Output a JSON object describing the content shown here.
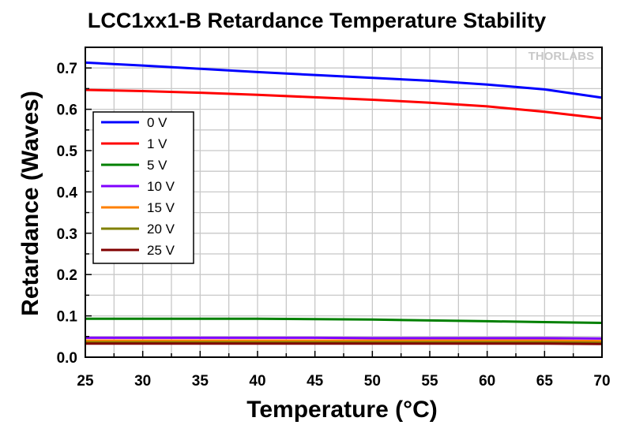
{
  "chart_data": {
    "type": "line",
    "title": "LCC1xx1-B Retardance Temperature Stability",
    "xlabel": "Temperature (°C)",
    "ylabel": "Retardance (Waves)",
    "xlim": [
      25,
      70
    ],
    "ylim": [
      0,
      0.75
    ],
    "xticks": [
      25,
      30,
      35,
      40,
      45,
      50,
      55,
      60,
      65,
      70
    ],
    "yticks": [
      0.0,
      0.1,
      0.2,
      0.3,
      0.4,
      0.5,
      0.6,
      0.7
    ],
    "ytick_labels": [
      "0.0",
      "0.1",
      "0.2",
      "0.3",
      "0.4",
      "0.5",
      "0.6",
      "0.7"
    ],
    "grid": true,
    "legend_position": "left-middle",
    "watermark": "THORLABS",
    "x": [
      25,
      30,
      35,
      40,
      45,
      50,
      55,
      60,
      65,
      70
    ],
    "series": [
      {
        "name": "0 V",
        "color": "#0000ff",
        "values": [
          0.713,
          0.706,
          0.698,
          0.69,
          0.683,
          0.676,
          0.669,
          0.66,
          0.648,
          0.628
        ]
      },
      {
        "name": "1 V",
        "color": "#ff0000",
        "values": [
          0.647,
          0.644,
          0.64,
          0.635,
          0.629,
          0.623,
          0.616,
          0.607,
          0.594,
          0.578
        ]
      },
      {
        "name": "5 V",
        "color": "#008000",
        "values": [
          0.093,
          0.093,
          0.093,
          0.093,
          0.092,
          0.091,
          0.089,
          0.087,
          0.085,
          0.083
        ]
      },
      {
        "name": "10 V",
        "color": "#8000ff",
        "values": [
          0.047,
          0.047,
          0.047,
          0.047,
          0.047,
          0.046,
          0.046,
          0.046,
          0.046,
          0.045
        ]
      },
      {
        "name": "15 V",
        "color": "#ff8000",
        "values": [
          0.04,
          0.04,
          0.04,
          0.04,
          0.04,
          0.04,
          0.04,
          0.04,
          0.04,
          0.039
        ]
      },
      {
        "name": "20 V",
        "color": "#808000",
        "values": [
          0.036,
          0.036,
          0.036,
          0.036,
          0.036,
          0.036,
          0.036,
          0.036,
          0.036,
          0.035
        ]
      },
      {
        "name": "25 V",
        "color": "#800000",
        "values": [
          0.033,
          0.033,
          0.033,
          0.033,
          0.033,
          0.033,
          0.033,
          0.033,
          0.033,
          0.032
        ]
      }
    ]
  }
}
